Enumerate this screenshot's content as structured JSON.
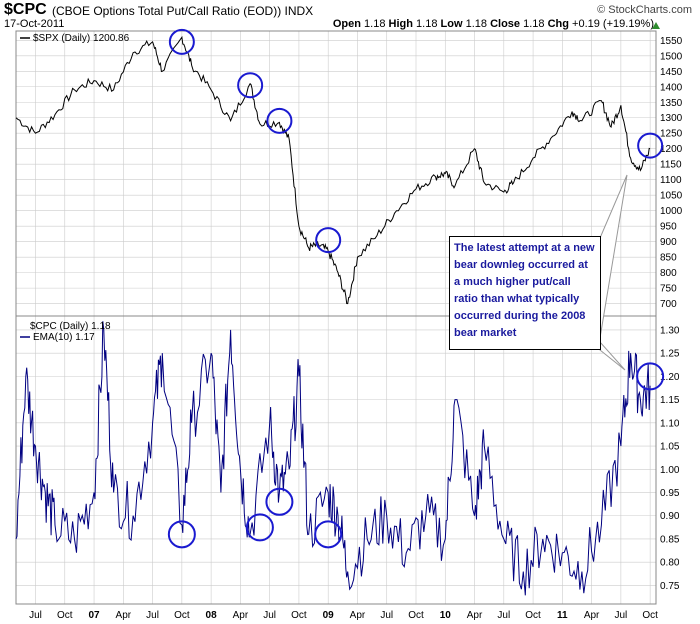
{
  "header": {
    "symbol": "$CPC",
    "description": "(CBOE Options Total Put/Call Ratio (EOD)) INDX",
    "date": "17-Oct-2011",
    "credit": "© StockCharts.com",
    "open_label": "Open",
    "open": "1.18",
    "high_label": "High",
    "high": "1.18",
    "low_label": "Low",
    "low": "1.18",
    "close_label": "Close",
    "close": "1.18",
    "chg_label": "Chg",
    "chg": "+0.19 (+19.19%)"
  },
  "annotation": "The latest attempt at a new bear downleg occurred at a much higher put/call ratio than what typically occurred during the 2008 bear market",
  "colors": {
    "spx_line": "#000000",
    "cpc_line": "#000080",
    "circle": "#1a1ad0",
    "grid": "#cccccc",
    "up_arrow": "#2e8b2e"
  },
  "chart_data": [
    {
      "type": "line",
      "legend": "$SPX (Daily) 1200.86",
      "ylim": [
        660,
        1580
      ],
      "yticks": [
        700,
        750,
        800,
        850,
        900,
        950,
        1000,
        1050,
        1100,
        1150,
        1200,
        1250,
        1300,
        1350,
        1400,
        1450,
        1500,
        1550
      ],
      "x": [
        "2006-05",
        "2006-07",
        "2006-09",
        "2006-11",
        "2007-01",
        "2007-03",
        "2007-05",
        "2007-07",
        "2007-08",
        "2007-10",
        "2007-11",
        "2008-01",
        "2008-03",
        "2008-05",
        "2008-06",
        "2008-08",
        "2008-09",
        "2008-10",
        "2008-11",
        "2008-12",
        "2009-01",
        "2009-02",
        "2009-03",
        "2009-04",
        "2009-06",
        "2009-08",
        "2009-10",
        "2009-12",
        "2010-01",
        "2010-02",
        "2010-04",
        "2010-05",
        "2010-07",
        "2010-08",
        "2010-10",
        "2010-12",
        "2011-02",
        "2011-03",
        "2011-05",
        "2011-06",
        "2011-07",
        "2011-08",
        "2011-09",
        "2011-10"
      ],
      "values": [
        1300,
        1250,
        1310,
        1390,
        1420,
        1390,
        1510,
        1545,
        1450,
        1560,
        1470,
        1390,
        1290,
        1410,
        1280,
        1285,
        1230,
        950,
        880,
        890,
        870,
        800,
        700,
        850,
        920,
        1000,
        1070,
        1110,
        1120,
        1080,
        1200,
        1090,
        1060,
        1090,
        1170,
        1240,
        1320,
        1290,
        1355,
        1270,
        1340,
        1170,
        1130,
        1200
      ]
    },
    {
      "type": "line",
      "legend": "$CPC (Daily) 1.18",
      "series_label": "EMA(10) 1.17",
      "ylim": [
        0.71,
        1.33
      ],
      "yticks": [
        0.75,
        0.8,
        0.85,
        0.9,
        0.95,
        1.0,
        1.05,
        1.1,
        1.15,
        1.2,
        1.25,
        1.3
      ],
      "x": [
        "2006-05",
        "2006-06",
        "2006-07",
        "2006-08",
        "2006-09",
        "2006-11",
        "2007-01",
        "2007-02",
        "2007-03",
        "2007-05",
        "2007-07",
        "2007-08",
        "2007-10",
        "2007-11",
        "2008-01",
        "2008-02",
        "2008-03",
        "2008-04",
        "2008-05",
        "2008-07",
        "2008-08",
        "2008-09",
        "2008-10",
        "2008-11",
        "2009-01",
        "2009-02",
        "2009-03",
        "2009-05",
        "2009-07",
        "2009-09",
        "2009-11",
        "2010-01",
        "2010-02",
        "2010-04",
        "2010-05",
        "2010-07",
        "2010-09",
        "2010-11",
        "2011-01",
        "2011-03",
        "2011-05",
        "2011-07",
        "2011-08",
        "2011-09",
        "2011-10"
      ],
      "values": [
        0.85,
        1.2,
        1.05,
        0.95,
        0.88,
        0.85,
        0.95,
        1.3,
        0.95,
        0.9,
        1.1,
        1.25,
        0.88,
        1.1,
        1.25,
        0.95,
        1.3,
        1.0,
        0.86,
        1.1,
        0.95,
        1.0,
        1.2,
        0.86,
        0.95,
        0.9,
        0.78,
        0.85,
        0.9,
        0.82,
        0.9,
        0.85,
        1.15,
        0.9,
        1.05,
        0.85,
        0.78,
        0.85,
        0.82,
        0.78,
        0.88,
        1.05,
        1.25,
        1.15,
        1.18
      ]
    }
  ],
  "xaxis": {
    "labels": [
      {
        "text": "Jul",
        "date": "2006-07",
        "year": false
      },
      {
        "text": "Oct",
        "date": "2006-10",
        "year": false
      },
      {
        "text": "07",
        "date": "2007-01",
        "year": true
      },
      {
        "text": "Apr",
        "date": "2007-04",
        "year": false
      },
      {
        "text": "Jul",
        "date": "2007-07",
        "year": false
      },
      {
        "text": "Oct",
        "date": "2007-10",
        "year": false
      },
      {
        "text": "08",
        "date": "2008-01",
        "year": true
      },
      {
        "text": "Apr",
        "date": "2008-04",
        "year": false
      },
      {
        "text": "Jul",
        "date": "2008-07",
        "year": false
      },
      {
        "text": "Oct",
        "date": "2008-10",
        "year": false
      },
      {
        "text": "09",
        "date": "2009-01",
        "year": true
      },
      {
        "text": "Apr",
        "date": "2009-04",
        "year": false
      },
      {
        "text": "Jul",
        "date": "2009-07",
        "year": false
      },
      {
        "text": "Oct",
        "date": "2009-10",
        "year": false
      },
      {
        "text": "10",
        "date": "2010-01",
        "year": true
      },
      {
        "text": "Apr",
        "date": "2010-04",
        "year": false
      },
      {
        "text": "Jul",
        "date": "2010-07",
        "year": false
      },
      {
        "text": "Oct",
        "date": "2010-10",
        "year": false
      },
      {
        "text": "11",
        "date": "2011-01",
        "year": true
      },
      {
        "text": "Apr",
        "date": "2011-04",
        "year": false
      },
      {
        "text": "Jul",
        "date": "2011-07",
        "year": false
      },
      {
        "text": "Oct",
        "date": "2011-10",
        "year": false
      }
    ]
  },
  "circles": {
    "spx": [
      {
        "date": "2007-10",
        "value": 1545
      },
      {
        "date": "2008-05",
        "value": 1405
      },
      {
        "date": "2008-08",
        "value": 1290
      },
      {
        "date": "2009-01",
        "value": 905
      },
      {
        "date": "2011-10",
        "value": 1210
      }
    ],
    "cpc": [
      {
        "date": "2007-10",
        "value": 0.86
      },
      {
        "date": "2008-06",
        "value": 0.875
      },
      {
        "date": "2008-08",
        "value": 0.93
      },
      {
        "date": "2009-01",
        "value": 0.86
      },
      {
        "date": "2011-10",
        "value": 1.2
      }
    ]
  }
}
